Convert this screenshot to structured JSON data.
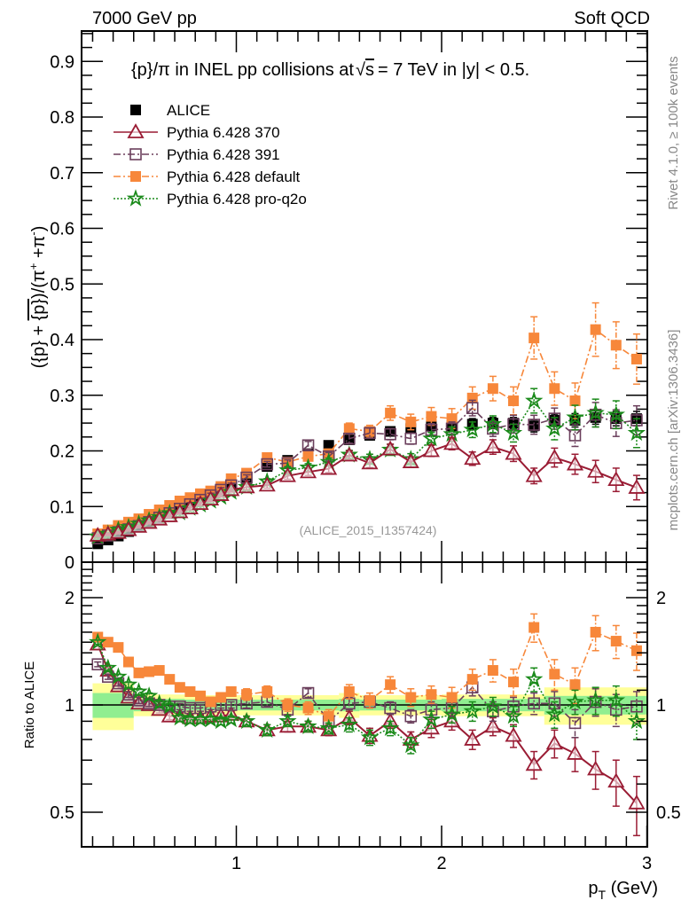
{
  "chart_data": [
    {
      "type": "scatter",
      "panel": "main",
      "header_left": "7000 GeV pp",
      "header_right": "Soft QCD",
      "title": "{p}/π in INEL pp collisions at √s = 7 TeV in |y| < 0.5.",
      "title_parts": {
        "pre": "{p}/π in INEL pp collisions at",
        "sqrt": "√",
        "s": "s",
        "post": "=  7 TeV in |y| < 0.5."
      },
      "ylabel": "({p} + {p̄})/(π⁺ + π⁻)",
      "xlim": [
        0.25,
        3.05
      ],
      "ylim": [
        0,
        0.96
      ],
      "yticks": [
        0,
        0.1,
        0.2,
        0.3,
        0.4,
        0.5,
        0.6,
        0.7,
        0.8,
        0.9
      ],
      "ytick_labels": [
        "0",
        "0.1",
        "0.2",
        "0.3",
        "0.4",
        "0.5",
        "0.6",
        "0.7",
        "0.8",
        "0.9"
      ],
      "legend_position": "top-left",
      "annotation": "(ALICE_2015_I1357424)",
      "side_text_top": "Rivet 4.1.0, ≥ 100k events",
      "side_text_bottom": "mcplots.cern.ch [arXiv:1306.3436]",
      "x": [
        0.325,
        0.375,
        0.425,
        0.475,
        0.525,
        0.575,
        0.625,
        0.675,
        0.725,
        0.775,
        0.825,
        0.875,
        0.925,
        0.975,
        1.05,
        1.15,
        1.25,
        1.35,
        1.45,
        1.55,
        1.65,
        1.75,
        1.85,
        1.95,
        2.05,
        2.15,
        2.25,
        2.35,
        2.45,
        2.55,
        2.65,
        2.75,
        2.85,
        2.95
      ],
      "series": [
        {
          "name": "ALICE",
          "marker": "filled-square",
          "color": "#000000",
          "line": "none",
          "values": [
            0.033,
            0.04,
            0.047,
            0.055,
            0.063,
            0.071,
            0.08,
            0.089,
            0.097,
            0.106,
            0.114,
            0.121,
            0.13,
            0.138,
            0.15,
            0.172,
            0.183,
            0.195,
            0.21,
            0.22,
            0.228,
            0.235,
            0.24,
            0.245,
            0.245,
            0.248,
            0.25,
            0.25,
            0.245,
            0.255,
            0.255,
            0.26,
            0.258,
            0.258
          ],
          "errors": [
            0.003,
            0.003,
            0.003,
            0.003,
            0.003,
            0.003,
            0.003,
            0.004,
            0.004,
            0.004,
            0.004,
            0.004,
            0.005,
            0.005,
            0.005,
            0.006,
            0.006,
            0.006,
            0.007,
            0.007,
            0.008,
            0.008,
            0.008,
            0.009,
            0.009,
            0.01,
            0.01,
            0.01,
            0.011,
            0.011,
            0.012,
            0.012,
            0.013,
            0.013
          ]
        },
        {
          "name": "Pythia 6.428 370",
          "marker": "open-triangle",
          "color": "#9a1c34",
          "line": "solid",
          "values": [
            0.048,
            0.05,
            0.053,
            0.058,
            0.064,
            0.071,
            0.077,
            0.083,
            0.09,
            0.097,
            0.105,
            0.113,
            0.121,
            0.13,
            0.135,
            0.138,
            0.155,
            0.162,
            0.168,
            0.192,
            0.178,
            0.203,
            0.18,
            0.2,
            0.213,
            0.186,
            0.207,
            0.195,
            0.155,
            0.188,
            0.176,
            0.163,
            0.148,
            0.134
          ],
          "errors": [
            0.002,
            0.002,
            0.002,
            0.002,
            0.002,
            0.002,
            0.003,
            0.003,
            0.003,
            0.003,
            0.003,
            0.004,
            0.004,
            0.004,
            0.005,
            0.005,
            0.006,
            0.006,
            0.007,
            0.008,
            0.008,
            0.009,
            0.009,
            0.01,
            0.011,
            0.012,
            0.013,
            0.014,
            0.014,
            0.017,
            0.018,
            0.02,
            0.021,
            0.022
          ]
        },
        {
          "name": "Pythia 6.428 391",
          "marker": "open-square",
          "color": "#6b3f5c",
          "line": "dashdot",
          "values": [
            0.043,
            0.048,
            0.054,
            0.059,
            0.065,
            0.072,
            0.08,
            0.088,
            0.096,
            0.104,
            0.112,
            0.12,
            0.13,
            0.138,
            0.152,
            0.176,
            0.178,
            0.21,
            0.19,
            0.222,
            0.232,
            0.23,
            0.222,
            0.238,
            0.24,
            0.277,
            0.24,
            0.248,
            0.247,
            0.258,
            0.228,
            0.265,
            0.25,
            0.255
          ],
          "errors": [
            0.002,
            0.002,
            0.002,
            0.002,
            0.002,
            0.002,
            0.003,
            0.003,
            0.003,
            0.003,
            0.003,
            0.004,
            0.004,
            0.004,
            0.005,
            0.005,
            0.006,
            0.007,
            0.007,
            0.008,
            0.009,
            0.01,
            0.01,
            0.011,
            0.012,
            0.014,
            0.014,
            0.016,
            0.017,
            0.019,
            0.02,
            0.022,
            0.024,
            0.026
          ]
        },
        {
          "name": "Pythia 6.428 default",
          "marker": "filled-square",
          "color": "#f7873a",
          "line": "dashdot",
          "values": [
            0.051,
            0.058,
            0.066,
            0.072,
            0.078,
            0.086,
            0.094,
            0.102,
            0.11,
            0.116,
            0.123,
            0.128,
            0.136,
            0.15,
            0.16,
            0.188,
            0.18,
            0.19,
            0.195,
            0.24,
            0.235,
            0.268,
            0.252,
            0.262,
            0.258,
            0.295,
            0.312,
            0.29,
            0.403,
            0.312,
            0.29,
            0.418,
            0.39,
            0.365
          ],
          "errors": [
            0.002,
            0.002,
            0.002,
            0.002,
            0.003,
            0.003,
            0.003,
            0.003,
            0.003,
            0.004,
            0.004,
            0.004,
            0.004,
            0.005,
            0.005,
            0.006,
            0.007,
            0.008,
            0.008,
            0.01,
            0.011,
            0.013,
            0.014,
            0.016,
            0.018,
            0.02,
            0.022,
            0.025,
            0.038,
            0.03,
            0.032,
            0.048,
            0.042,
            0.045
          ]
        },
        {
          "name": "Pythia 6.428 pro-q2o",
          "marker": "open-star",
          "color": "#1a8a1a",
          "line": "dotted",
          "values": [
            0.046,
            0.051,
            0.058,
            0.063,
            0.069,
            0.075,
            0.081,
            0.088,
            0.089,
            0.097,
            0.103,
            0.11,
            0.117,
            0.126,
            0.135,
            0.145,
            0.165,
            0.17,
            0.18,
            0.193,
            0.185,
            0.202,
            0.185,
            0.222,
            0.23,
            0.238,
            0.248,
            0.232,
            0.29,
            0.24,
            0.26,
            0.268,
            0.265,
            0.232
          ],
          "errors": [
            0.002,
            0.002,
            0.002,
            0.002,
            0.002,
            0.002,
            0.003,
            0.003,
            0.003,
            0.003,
            0.003,
            0.004,
            0.004,
            0.004,
            0.005,
            0.005,
            0.006,
            0.007,
            0.007,
            0.008,
            0.009,
            0.01,
            0.01,
            0.011,
            0.013,
            0.014,
            0.015,
            0.016,
            0.022,
            0.02,
            0.022,
            0.025,
            0.025,
            0.026
          ]
        }
      ]
    },
    {
      "type": "scatter",
      "panel": "ratio",
      "ylabel": "Ratio to ALICE",
      "xlabel": "p_T (GeV)",
      "xlabel_main": "p",
      "xlabel_sub": "T",
      "xlabel_unit": " (GeV)",
      "yscale": "log",
      "ylim": [
        0.4,
        2.5
      ],
      "yticks": [
        0.5,
        1,
        2
      ],
      "ytick_labels": [
        "0.5",
        "1",
        "2"
      ],
      "xlim": [
        0.25,
        3.05
      ],
      "xticks": [
        1,
        2,
        3
      ],
      "xtick_labels": [
        "1",
        "2",
        "3"
      ],
      "reference_line": 1,
      "bands": {
        "inner_color": "#90ee90",
        "outer_color": "#ffff99",
        "x_edges": [
          0.3,
          0.5,
          0.75,
          1.0,
          1.5,
          1.6,
          2.0,
          2.5,
          3.0
        ],
        "inner_halfwidth": [
          0.08,
          0.04,
          0.035,
          0.035,
          0.04,
          0.035,
          0.04,
          0.06
        ],
        "outer_halfwidth": [
          0.15,
          0.07,
          0.065,
          0.065,
          0.08,
          0.065,
          0.07,
          0.12
        ]
      },
      "series": [
        {
          "name": "Pythia 6.428 370",
          "values": [
            1.48,
            1.25,
            1.13,
            1.05,
            1.01,
            1.0,
            0.97,
            0.93,
            0.93,
            0.92,
            0.92,
            0.93,
            0.93,
            0.94,
            0.9,
            0.85,
            0.87,
            0.87,
            0.85,
            0.92,
            0.82,
            0.9,
            0.8,
            0.86,
            0.9,
            0.8,
            0.87,
            0.82,
            0.68,
            0.78,
            0.73,
            0.66,
            0.61,
            0.53
          ],
          "errors": [
            0.02,
            0.02,
            0.02,
            0.02,
            0.02,
            0.02,
            0.02,
            0.02,
            0.02,
            0.02,
            0.02,
            0.02,
            0.02,
            0.02,
            0.03,
            0.03,
            0.03,
            0.03,
            0.03,
            0.04,
            0.04,
            0.04,
            0.04,
            0.05,
            0.05,
            0.05,
            0.05,
            0.06,
            0.06,
            0.07,
            0.08,
            0.08,
            0.09,
            0.1
          ]
        },
        {
          "name": "Pythia 6.428 391",
          "values": [
            1.3,
            1.2,
            1.15,
            1.07,
            1.03,
            1.01,
            1.0,
            0.99,
            0.99,
            0.98,
            0.98,
            0.99,
            1.0,
            1.0,
            1.01,
            1.02,
            0.97,
            1.08,
            0.9,
            1.01,
            1.02,
            0.98,
            0.93,
            0.97,
            0.98,
            1.12,
            0.96,
            0.99,
            1.01,
            1.01,
            0.89,
            1.02,
            0.97,
            0.99
          ],
          "errors": [
            0.02,
            0.02,
            0.02,
            0.02,
            0.02,
            0.02,
            0.02,
            0.02,
            0.02,
            0.02,
            0.02,
            0.02,
            0.02,
            0.02,
            0.03,
            0.03,
            0.03,
            0.03,
            0.03,
            0.04,
            0.04,
            0.04,
            0.04,
            0.05,
            0.05,
            0.06,
            0.06,
            0.06,
            0.07,
            0.08,
            0.08,
            0.09,
            0.1,
            0.1
          ]
        },
        {
          "name": "Pythia 6.428 default",
          "values": [
            1.55,
            1.5,
            1.45,
            1.32,
            1.23,
            1.24,
            1.25,
            1.18,
            1.12,
            1.09,
            1.06,
            1.02,
            1.05,
            1.09,
            1.07,
            1.09,
            1.0,
            0.98,
            0.93,
            1.09,
            1.03,
            1.14,
            1.05,
            1.07,
            1.05,
            1.18,
            1.25,
            1.16,
            1.65,
            1.22,
            1.14,
            1.6,
            1.51,
            1.42
          ],
          "errors": [
            0.03,
            0.03,
            0.03,
            0.03,
            0.03,
            0.03,
            0.03,
            0.03,
            0.03,
            0.03,
            0.03,
            0.03,
            0.03,
            0.03,
            0.04,
            0.04,
            0.04,
            0.04,
            0.04,
            0.05,
            0.05,
            0.06,
            0.06,
            0.06,
            0.07,
            0.08,
            0.09,
            0.1,
            0.15,
            0.12,
            0.13,
            0.18,
            0.16,
            0.17
          ]
        },
        {
          "name": "Pythia 6.428 pro-q2o",
          "values": [
            1.5,
            1.27,
            1.2,
            1.14,
            1.09,
            1.06,
            1.01,
            0.99,
            0.92,
            0.91,
            0.91,
            0.91,
            0.9,
            0.91,
            0.9,
            0.85,
            0.9,
            0.87,
            0.86,
            0.88,
            0.81,
            0.86,
            0.77,
            0.91,
            0.94,
            0.96,
            0.99,
            0.93,
            1.18,
            0.94,
            1.02,
            1.03,
            1.03,
            0.9
          ],
          "errors": [
            0.02,
            0.02,
            0.02,
            0.02,
            0.02,
            0.02,
            0.02,
            0.02,
            0.02,
            0.02,
            0.02,
            0.02,
            0.02,
            0.02,
            0.03,
            0.03,
            0.03,
            0.03,
            0.03,
            0.04,
            0.04,
            0.04,
            0.04,
            0.05,
            0.05,
            0.06,
            0.06,
            0.06,
            0.09,
            0.08,
            0.08,
            0.09,
            0.1,
            0.1
          ]
        }
      ]
    }
  ]
}
